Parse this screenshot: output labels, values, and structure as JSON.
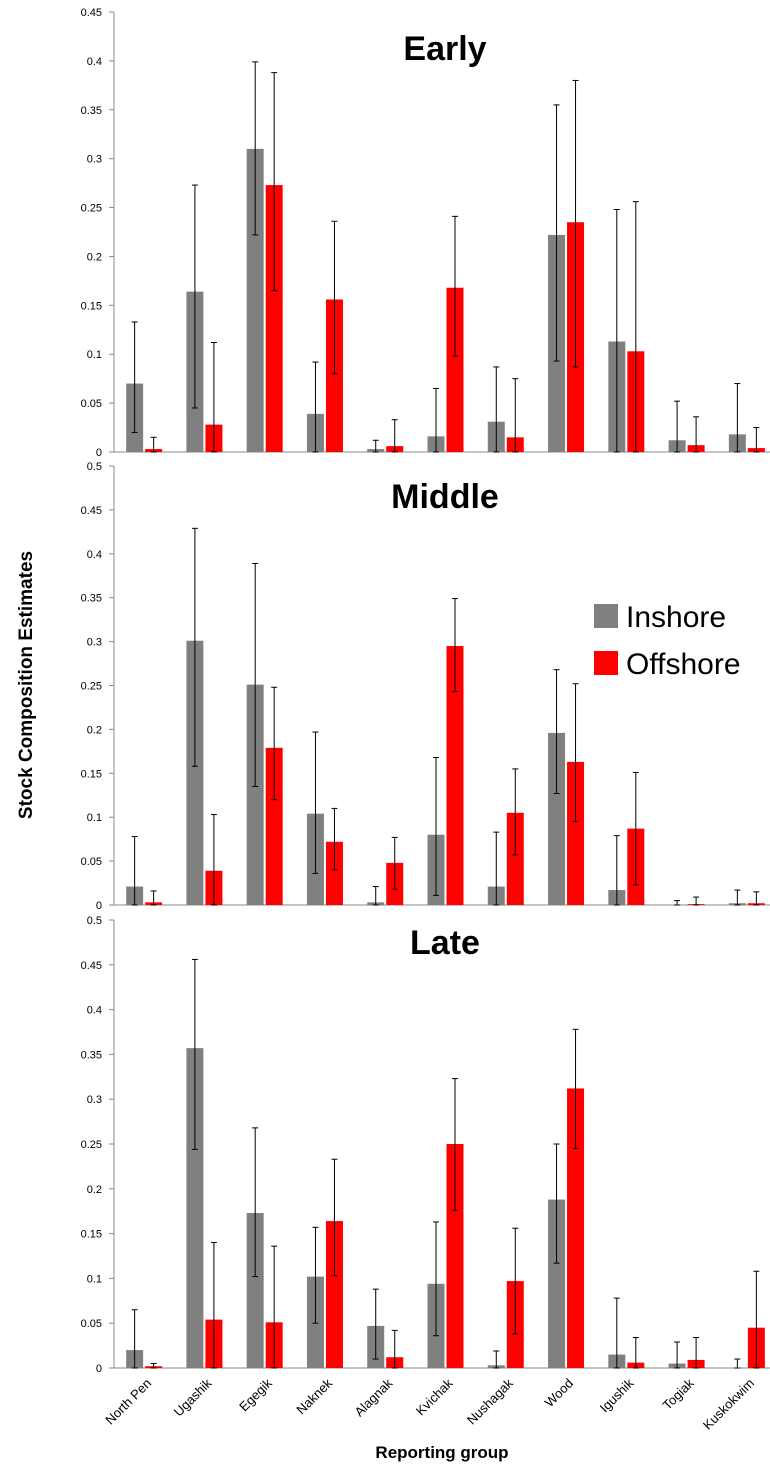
{
  "chart_data": {
    "type": "bar",
    "ylabel": "Stock Composition Estimates",
    "xlabel": "Reporting group",
    "categories": [
      "North Pen",
      "Ugashik",
      "Egegik",
      "Naknek",
      "Alagnak",
      "Kvichak",
      "Nushagak",
      "Wood",
      "Igushik",
      "Togiak",
      "Kuskokwim"
    ],
    "legend": {
      "position": "right",
      "entries": [
        {
          "name": "Inshore",
          "color": "#808080"
        },
        {
          "name": "Offshore",
          "color": "#ff0000"
        }
      ]
    },
    "panels": [
      {
        "title": "Early",
        "ylim": [
          0,
          0.45
        ],
        "yticks": [
          "0",
          "0.05",
          "0.1",
          "0.15",
          "0.2",
          "0.25",
          "0.3",
          "0.35",
          "0.4",
          "0.45"
        ],
        "series": [
          {
            "name": "Inshore",
            "values": [
              0.07,
              0.164,
              0.31,
              0.039,
              0.003,
              0.016,
              0.031,
              0.222,
              0.113,
              0.012,
              0.018
            ],
            "err_low": [
              0.02,
              0.045,
              0.222,
              0.0,
              0.0,
              0.0,
              0.0,
              0.093,
              0.0,
              0.0,
              0.0
            ],
            "err_high": [
              0.133,
              0.273,
              0.399,
              0.092,
              0.012,
              0.065,
              0.087,
              0.355,
              0.248,
              0.052,
              0.07
            ]
          },
          {
            "name": "Offshore",
            "values": [
              0.003,
              0.028,
              0.273,
              0.156,
              0.006,
              0.168,
              0.015,
              0.235,
              0.103,
              0.007,
              0.004
            ],
            "err_low": [
              0.0,
              0.0,
              0.165,
              0.08,
              0.0,
              0.098,
              0.0,
              0.087,
              0.0,
              0.0,
              0.0
            ],
            "err_high": [
              0.015,
              0.112,
              0.388,
              0.236,
              0.033,
              0.241,
              0.075,
              0.38,
              0.256,
              0.036,
              0.025
            ]
          }
        ]
      },
      {
        "title": "Middle",
        "ylim": [
          0,
          0.5
        ],
        "yticks": [
          "0",
          "0.05",
          "0.1",
          "0.15",
          "0.2",
          "0.25",
          "0.3",
          "0.35",
          "0.4",
          "0.45",
          "0.5"
        ],
        "series": [
          {
            "name": "Inshore",
            "values": [
              0.021,
              0.301,
              0.251,
              0.104,
              0.003,
              0.08,
              0.021,
              0.196,
              0.017,
              0.0,
              0.002
            ],
            "err_low": [
              0.0,
              0.158,
              0.135,
              0.036,
              0.0,
              0.011,
              0.0,
              0.127,
              0.0,
              0.0,
              0.0
            ],
            "err_high": [
              0.078,
              0.429,
              0.389,
              0.197,
              0.021,
              0.168,
              0.083,
              0.268,
              0.079,
              0.005,
              0.017
            ]
          },
          {
            "name": "Offshore",
            "values": [
              0.003,
              0.039,
              0.179,
              0.072,
              0.048,
              0.295,
              0.105,
              0.163,
              0.087,
              0.001,
              0.002
            ],
            "err_low": [
              0.0,
              0.0,
              0.12,
              0.04,
              0.018,
              0.243,
              0.057,
              0.095,
              0.023,
              0.0,
              0.0
            ],
            "err_high": [
              0.016,
              0.103,
              0.248,
              0.11,
              0.077,
              0.349,
              0.155,
              0.252,
              0.151,
              0.009,
              0.015
            ]
          }
        ]
      },
      {
        "title": "Late",
        "ylim": [
          0,
          0.5
        ],
        "yticks": [
          "0",
          "0.05",
          "0.1",
          "0.15",
          "0.2",
          "0.25",
          "0.3",
          "0.35",
          "0.4",
          "0.45",
          "0.5"
        ],
        "series": [
          {
            "name": "Inshore",
            "values": [
              0.02,
              0.357,
              0.173,
              0.102,
              0.047,
              0.094,
              0.003,
              0.188,
              0.015,
              0.005,
              0.0
            ],
            "err_low": [
              0.0,
              0.244,
              0.102,
              0.05,
              0.01,
              0.036,
              0.0,
              0.117,
              0.0,
              0.0,
              0.0
            ],
            "err_high": [
              0.065,
              0.456,
              0.268,
              0.157,
              0.088,
              0.163,
              0.019,
              0.25,
              0.078,
              0.029,
              0.01
            ]
          },
          {
            "name": "Offshore",
            "values": [
              0.002,
              0.054,
              0.051,
              0.164,
              0.012,
              0.25,
              0.097,
              0.312,
              0.006,
              0.009,
              0.045
            ],
            "err_low": [
              0.0,
              0.0,
              0.0,
              0.103,
              0.0,
              0.176,
              0.038,
              0.245,
              0.0,
              0.0,
              0.0
            ],
            "err_high": [
              0.005,
              0.14,
              0.136,
              0.233,
              0.042,
              0.323,
              0.156,
              0.378,
              0.034,
              0.034,
              0.108
            ]
          }
        ]
      }
    ]
  }
}
